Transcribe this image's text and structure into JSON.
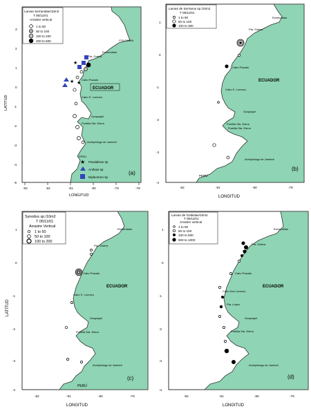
{
  "colors": {
    "land": "#8fd4b4",
    "species_blue": "#3344bb"
  },
  "shared": {
    "xlabel": "LONGITUD",
    "ylabel": "LATITUD"
  },
  "panels": [
    {
      "id": "a",
      "letter": "(a)",
      "legend_title": [
        "Larvas Serranidae/10m2",
        "T 05/11/01",
        "Arrastre vertical"
      ],
      "legend_items": [
        "1 to 50",
        "50 to 100",
        "100 to 200",
        "200 to 500"
      ],
      "species": [
        "Paralabrax sp",
        "Anthias sp",
        "Diplectrum sp"
      ],
      "places": [
        "COLOMBIA",
        "Esmeraldas",
        "Pta. Galera",
        "Cabo Pasado",
        "ECUADOR",
        "Cabo S. Lorenzo",
        "Guayaquil",
        "Puntilla Sta. Elena",
        "Archipielago de Jambeli",
        "PERU"
      ],
      "x_ticks": [
        "-83",
        "-82",
        "-81",
        "-80",
        "-79",
        "-78"
      ],
      "y_ticks": [
        "3",
        "2",
        "1",
        "0",
        "-1",
        "-2",
        "-3",
        "-4",
        "-5"
      ]
    },
    {
      "id": "b",
      "letter": "(b)",
      "legend_title": [
        "Larvas de Serranus sp./10m2",
        "T 05/11/01"
      ],
      "legend_items": [
        "1 to 50",
        "50 to 100",
        "100 to 300"
      ],
      "places": [
        "Esmeraldas",
        "Pta. Galera",
        "Cabo Pasado",
        "ECUADOR",
        "Cabo S. Lorenzo",
        "Guayaquil",
        "Puntilla Sta. Elena",
        "Archipielago de Jambeli",
        "PERÚ"
      ],
      "x_ticks": [
        "-82",
        "-81",
        "-80",
        "-79"
      ],
      "y_ticks": [
        "1",
        "0",
        "-1",
        "-2",
        "-3",
        "-4"
      ]
    },
    {
      "id": "c",
      "letter": "(c)",
      "legend_title": [
        "Synodus sp./10m2",
        "T 05/11/01",
        "Arrastre Vertical"
      ],
      "legend_items": [
        "1 to 50",
        "50 to 100",
        "100 to 200"
      ],
      "places": [
        "Esmeraldas",
        "Pta. Galera",
        "Cabo Pasado",
        "ECUADOR",
        "Cabo S. Lorenzo",
        "Guayaquil",
        "Puntilla Sta. Elena",
        "Archipielago de Jambeli",
        "PERÚ"
      ],
      "x_ticks": [
        "-82",
        "-81",
        "-80",
        "-79"
      ],
      "y_ticks": [
        "1",
        "0",
        "-1",
        "-2",
        "-3",
        "-4"
      ]
    },
    {
      "id": "d",
      "letter": "(d)",
      "legend_title": [
        "Larvas de Gobiidae/10m2",
        "T 05/11/01",
        "Arrastre vertical"
      ],
      "legend_items": [
        "1 to 50",
        "50 to 100",
        "100 to 500",
        "500 to 1000"
      ],
      "places": [
        "Esmeraldas",
        "Pta. Galera",
        "Cabo Pasado",
        "ECUADOR",
        "Cabo San Lorenzo",
        "Pta. López",
        "Guayaquil",
        "Puntilla Sta. Elena",
        "Archipielago de Jambeli"
      ],
      "x_ticks": [
        "-82",
        "-81",
        "-80",
        "-79"
      ],
      "y_ticks": [
        "1",
        "0",
        "-1",
        "-2",
        "-3",
        "-4"
      ]
    }
  ]
}
